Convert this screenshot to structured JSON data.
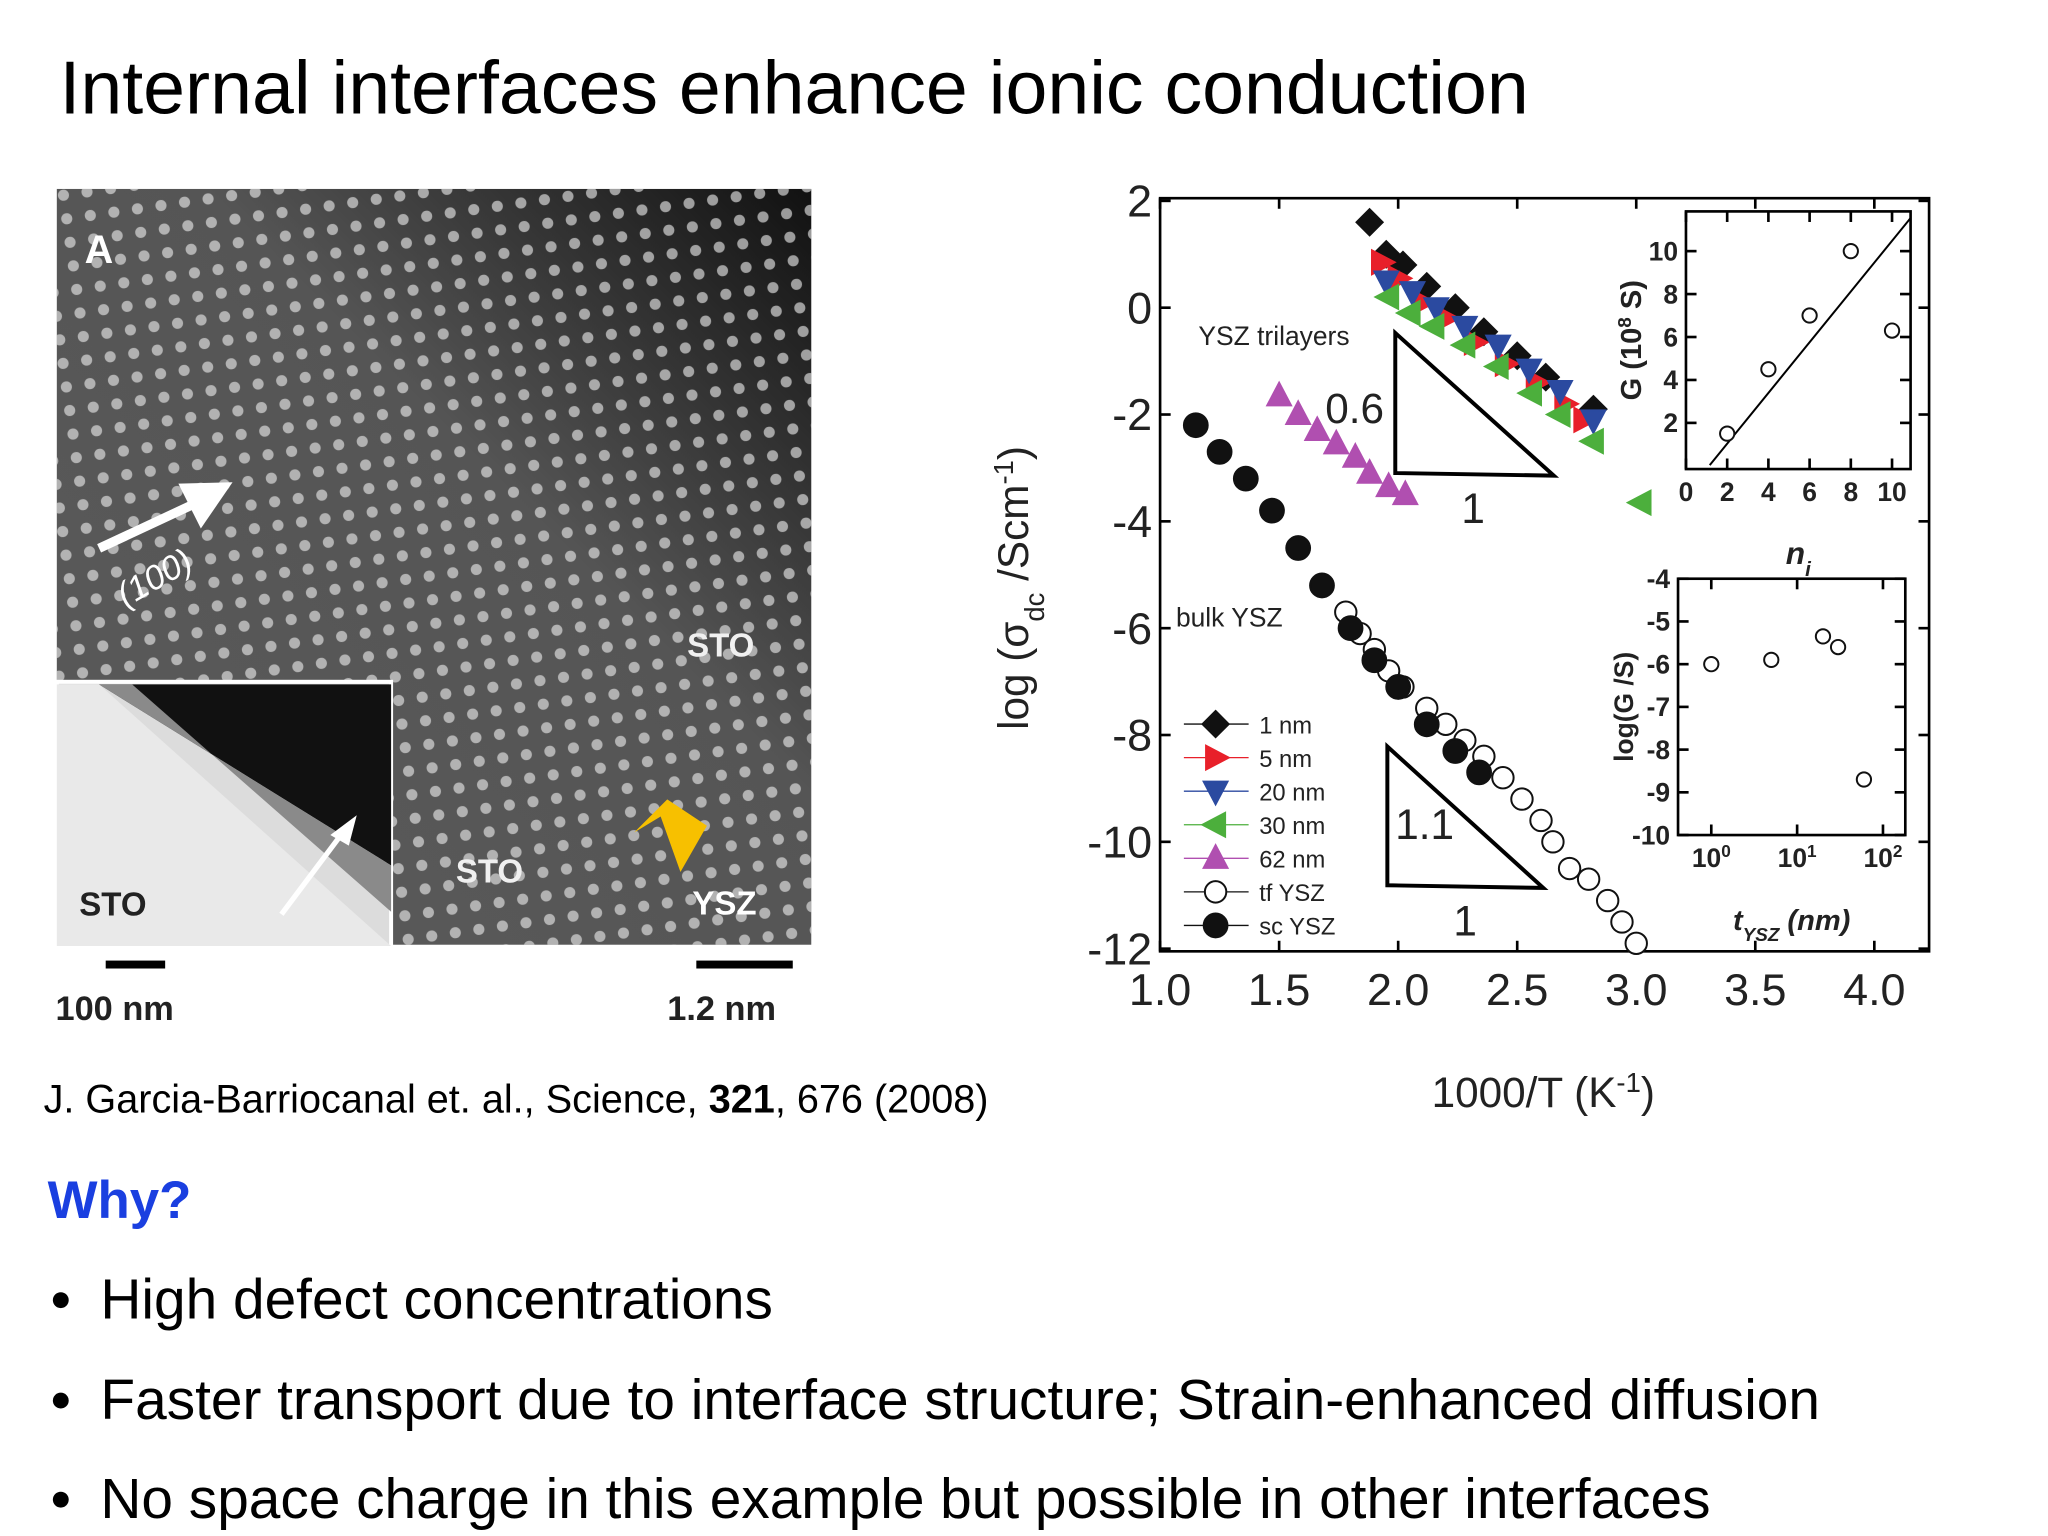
{
  "title": "Internal interfaces enhance ionic conduction",
  "figure": {
    "panel_label": "A",
    "direction_label": "(100)",
    "labels": [
      "STO",
      "STO",
      "YSZ"
    ],
    "inset_label": "STO",
    "scale_bars": [
      "100 nm",
      "1.2 nm"
    ]
  },
  "citation": {
    "authors": "J. Garcia-Barriocanal et. al., Science, ",
    "volume": "321",
    "rest": ", 676 (2008)"
  },
  "why": "Why?",
  "bullets": [
    "High defect concentrations",
    "Faster transport due to interface structure; Strain-enhanced diffusion",
    "No space charge in this example but possible in other interfaces"
  ],
  "chart_data": [
    {
      "type": "scatter",
      "xlim": [
        1.0,
        4.23
      ],
      "ylim": [
        -12.05,
        2.05
      ],
      "xticks": [
        {
          "value": 1,
          "label": "1.0"
        },
        {
          "value": 1.5,
          "label": "1.5"
        },
        {
          "value": 2,
          "label": "2.0"
        },
        {
          "value": 2.5,
          "label": "2.5"
        },
        {
          "value": 3,
          "label": "3.0"
        },
        {
          "value": 3.5,
          "label": "3.5"
        },
        {
          "value": 4,
          "label": "4.0"
        }
      ],
      "yticks": [
        2,
        0,
        -2,
        -4,
        -6,
        -8,
        -10,
        -12
      ],
      "xlabel": [
        {
          "text": "1000/T (K"
        },
        {
          "text": "-1",
          "sup": true
        },
        {
          "text": ")"
        }
      ],
      "ylabel": [
        {
          "text": "log (σ"
        },
        {
          "text": "dc",
          "sub": true
        },
        {
          "text": " /Scm"
        },
        {
          "text": "-1",
          "sup": true
        },
        {
          "text": ")"
        }
      ],
      "annotations": [
        "YSZ trilayers",
        "bulk YSZ",
        "0.6",
        "1",
        "1.1",
        "1"
      ],
      "legend": "lower left",
      "series": [
        {
          "name": "1 nm",
          "color": "#111111",
          "marker": "diamond",
          "x": [
            1.88,
            1.95,
            2.02,
            2.12,
            2.24,
            2.36,
            2.5,
            2.62,
            2.82
          ],
          "values": [
            1.6,
            1.0,
            0.8,
            0.4,
            0,
            -0.45,
            -0.9,
            -1.3,
            -1.9
          ]
        },
        {
          "name": "5 nm",
          "color": "#e8202a",
          "marker": "triangle-right",
          "x": [
            1.93,
            2.0,
            2.1,
            2.2,
            2.32,
            2.45,
            2.58,
            2.7,
            2.78
          ],
          "values": [
            0.85,
            0.55,
            0.1,
            -0.2,
            -0.65,
            -1.05,
            -1.4,
            -1.8,
            -2.1
          ]
        },
        {
          "name": "20 nm",
          "color": "#2b4aa0",
          "marker": "triangle-down",
          "x": [
            1.95,
            2.06,
            2.16,
            2.28,
            2.42,
            2.55,
            2.68,
            2.82
          ],
          "values": [
            0.5,
            0.3,
            0,
            -0.35,
            -0.7,
            -1.15,
            -1.55,
            -2.1
          ]
        },
        {
          "name": "30 nm",
          "color": "#4caf3c",
          "marker": "triangle-left",
          "x": [
            1.96,
            2.05,
            2.15,
            2.28,
            2.42,
            2.56,
            2.68,
            2.82,
            3.02
          ],
          "values": [
            0.2,
            -0.1,
            -0.35,
            -0.7,
            -1.1,
            -1.6,
            -2.0,
            -2.5,
            -3.65
          ]
        },
        {
          "name": "62 nm",
          "color": "#b04fb0",
          "marker": "triangle-up",
          "x": [
            1.5,
            1.58,
            1.66,
            1.74,
            1.82,
            1.88,
            1.96,
            2.03
          ],
          "values": [
            -1.65,
            -2.0,
            -2.3,
            -2.55,
            -2.8,
            -3.1,
            -3.35,
            -3.5
          ]
        },
        {
          "name": "tf YSZ",
          "color": "#111111",
          "marker": "circle-open",
          "x": [
            1.78,
            1.84,
            1.9,
            1.96,
            2.02,
            2.12,
            2.2,
            2.28,
            2.36,
            2.44,
            2.52,
            2.6,
            2.65,
            2.72,
            2.8,
            2.88,
            2.94,
            3.0
          ],
          "values": [
            -5.7,
            -6.1,
            -6.4,
            -6.8,
            -7.1,
            -7.5,
            -7.8,
            -8.1,
            -8.4,
            -8.8,
            -9.2,
            -9.6,
            -10.0,
            -10.5,
            -10.7,
            -11.1,
            -11.5,
            -11.9
          ]
        },
        {
          "name": "sc YSZ",
          "color": "#111111",
          "marker": "circle",
          "x": [
            1.15,
            1.25,
            1.36,
            1.47,
            1.58,
            1.68,
            1.8,
            1.9,
            2.0,
            2.12,
            2.24,
            2.34
          ],
          "values": [
            -2.2,
            -2.7,
            -3.2,
            -3.8,
            -4.5,
            -5.2,
            -6.0,
            -6.6,
            -7.1,
            -7.8,
            -8.3,
            -8.7
          ]
        }
      ]
    },
    {
      "type": "scatter",
      "xlim": [
        0,
        10.9
      ],
      "ylim": [
        -0.15,
        11.85
      ],
      "xticks": [
        0,
        2,
        4,
        6,
        8,
        10
      ],
      "yticks": [
        2,
        4,
        6,
        8,
        10
      ],
      "xlabel": [
        {
          "text": "n"
        },
        {
          "text": "i",
          "sub": true
        }
      ],
      "ylabel": [
        {
          "text": "G (10"
        },
        {
          "text": "8",
          "sup": true
        },
        {
          "text": " S)"
        }
      ],
      "series": [
        {
          "color": "#111111",
          "marker": "circle-open",
          "x": [
            2,
            4,
            6,
            8,
            10
          ],
          "values": [
            1.5,
            4.5,
            7,
            10,
            6.3
          ]
        }
      ]
    },
    {
      "type": "scatter",
      "xscale": "log",
      "xlim": [
        0.41,
        182
      ],
      "ylim": [
        -10,
        -4
      ],
      "xticks": [
        {
          "value": 1,
          "label": "10",
          "sup": "0"
        },
        {
          "value": 10,
          "label": "10",
          "sup": "1"
        },
        {
          "value": 100,
          "label": "10",
          "sup": "2"
        }
      ],
      "yticks": [
        -4,
        -5,
        -6,
        -7,
        -8,
        -9,
        -10
      ],
      "xlabel": [
        {
          "text": "t"
        },
        {
          "text": "YSZ",
          "sub": true
        },
        {
          "text": " (nm)"
        }
      ],
      "ylabel": [
        {
          "text": "log(G /S)"
        }
      ],
      "series": [
        {
          "color": "#111111",
          "marker": "circle-open",
          "x": [
            1,
            5,
            20,
            30,
            60
          ],
          "values": [
            -6,
            -5.9,
            -5.35,
            -5.6,
            -8.7
          ]
        }
      ]
    }
  ]
}
